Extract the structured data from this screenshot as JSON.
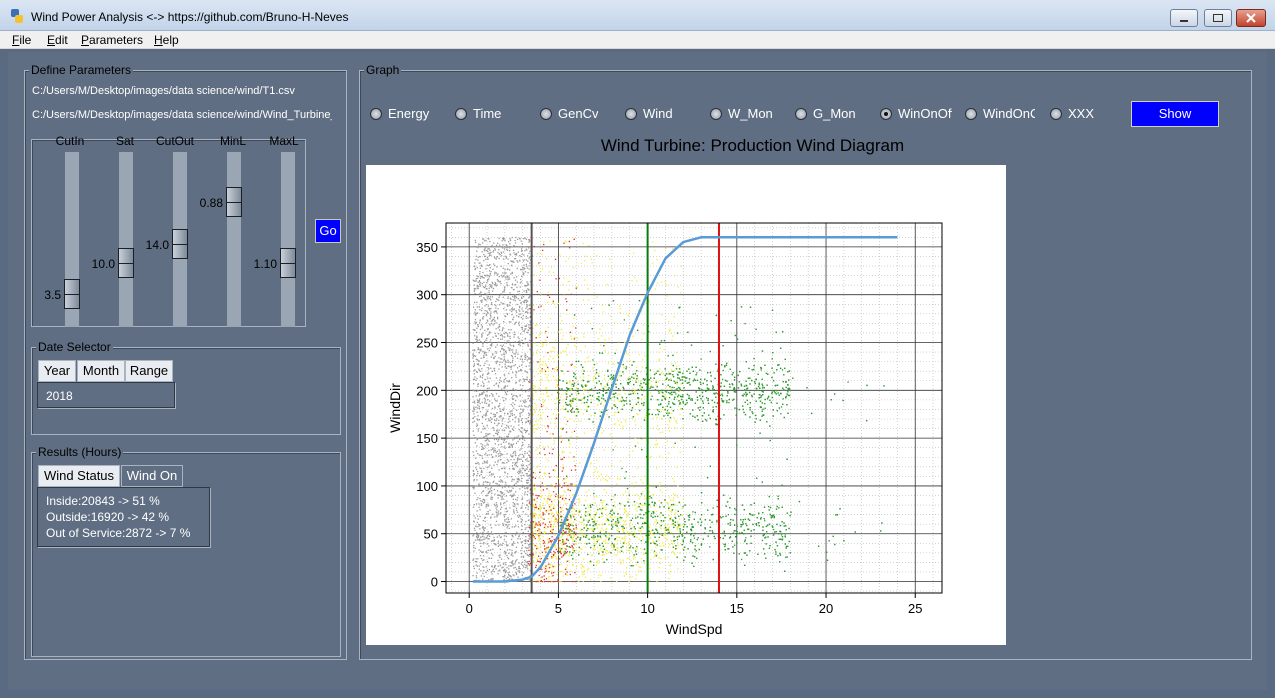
{
  "window": {
    "title": "Wind Power Analysis <-> https://github.com/Bruno-H-Neves"
  },
  "menu": [
    {
      "label": "File",
      "key": "F",
      "rest": "ile"
    },
    {
      "label": "Edit",
      "key": "E",
      "rest": "dit"
    },
    {
      "label": "Parameters",
      "key": "P",
      "rest": "arameters"
    },
    {
      "label": "Help",
      "key": "H",
      "rest": "elp"
    }
  ],
  "define": {
    "title": "Define Parameters",
    "path1": "C:/Users/M/Desktop/images/data science/wind/T1.csv",
    "path2": "C:/Users/M/Desktop/images/data science/wind/Wind_Turbine_I",
    "sliders": [
      {
        "label": "CutIn",
        "value": "3.5"
      },
      {
        "label": "Sat",
        "value": "10.0"
      },
      {
        "label": "CutOut",
        "value": "14.0"
      },
      {
        "label": "MinL",
        "value": "0.88"
      },
      {
        "label": "MaxL",
        "value": "1.10"
      }
    ],
    "go": "Go"
  },
  "date": {
    "title": "Date Selector",
    "tabs": [
      "Year",
      "Month",
      "Range"
    ],
    "active_tab": "Year",
    "value": "2018"
  },
  "results": {
    "title": "Results (Hours)",
    "tabs": [
      "Wind Status",
      "Wind On"
    ],
    "active_tab": "Wind Status",
    "lines": [
      "Inside:20843 -> 51 %",
      "Outside:16920 -> 42 %",
      "Out of Service:2872 -> 7 %"
    ]
  },
  "graph": {
    "title": "Graph",
    "options": [
      "Energy",
      "Time",
      "GenCv",
      "Wind",
      "W_Mon",
      "G_Mon",
      "WinOnOff",
      "WindOnOff",
      "XXX"
    ],
    "selected": "WinOnOff",
    "show": "Show"
  },
  "colors": {
    "grey_points": "#9a9a9a",
    "red_points": "#e03030",
    "yellow_points": "#f2ee3a",
    "green_points": "#2e9a2e",
    "curve": "#5a9bd5",
    "cutin_line": "#555555",
    "sat_line": "#0a7a0a",
    "cutout_line": "#dd1111",
    "accent_button": "#0000ff"
  },
  "chart_data": {
    "type": "scatter",
    "title": "Wind Turbine: Production Wind Diagram",
    "xlabel": "WindSpd",
    "ylabel": "WindDir",
    "xlim": [
      -1.3,
      26.5
    ],
    "ylim": [
      -12,
      375
    ],
    "xticks": [
      0,
      5,
      10,
      15,
      20,
      25
    ],
    "yticks": [
      0,
      50,
      100,
      150,
      200,
      250,
      300,
      350
    ],
    "grid": true,
    "vlines": [
      {
        "x": 3.5,
        "color": "#555555"
      },
      {
        "x": 10,
        "color": "#0a7a0a"
      },
      {
        "x": 14,
        "color": "#dd1111"
      }
    ],
    "curve": {
      "x": [
        0.2,
        1,
        2,
        3,
        3.5,
        4,
        5,
        6,
        7,
        8,
        9,
        10,
        11,
        12,
        13,
        14,
        16,
        18,
        20,
        22,
        24
      ],
      "y": [
        0,
        0,
        0,
        2,
        5,
        15,
        48,
        92,
        145,
        202,
        258,
        302,
        338,
        355,
        360,
        360,
        360,
        360,
        360,
        360,
        360
      ]
    },
    "clusters": [
      {
        "category": "grey",
        "x_range": [
          0.2,
          3.5
        ],
        "y_range": [
          0,
          360
        ]
      },
      {
        "category": "red",
        "x_range": [
          3.2,
          4.2
        ],
        "y_range": [
          0,
          360
        ]
      },
      {
        "category": "yellow",
        "x_range": [
          3.5,
          12
        ],
        "y_range": [
          0,
          360
        ]
      },
      {
        "category": "green",
        "x_range": [
          5,
          24
        ],
        "y_center": [
          200,
          55
        ]
      }
    ]
  }
}
